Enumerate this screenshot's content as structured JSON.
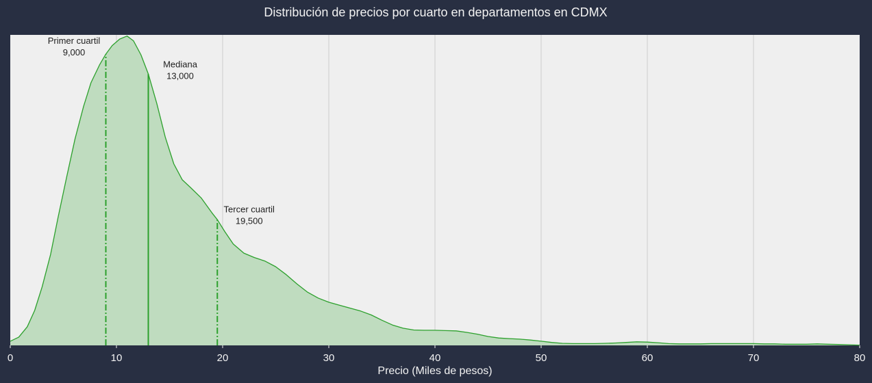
{
  "chart_data": {
    "type": "area",
    "title": "Distribución de precios por cuarto en departamentos en CDMX",
    "xlabel": "Precio (Miles de pesos)",
    "ylabel": "",
    "xlim": [
      0,
      80
    ],
    "ylim": [
      0,
      1.05
    ],
    "x_ticks": [
      "0",
      "10",
      "20",
      "30",
      "40",
      "50",
      "60",
      "70",
      "80"
    ],
    "grid": {
      "vertical": true,
      "horizontal": false
    },
    "colors": {
      "background": "#282f42",
      "plot_background": "#efefef",
      "line": "#2ca02c",
      "fill": "#bfdcbf",
      "grid": "#cccccc",
      "text": "#f2f2f2"
    },
    "series": [
      {
        "x": [
          0,
          0.8,
          1.6,
          2.3,
          3.0,
          3.8,
          4.5,
          5.3,
          6.1,
          6.9,
          7.6,
          8.4,
          9.0,
          9.6,
          10.3,
          11.0,
          11.6,
          12.3,
          13.0,
          13.8,
          14.6,
          15.4,
          16.2,
          17.0,
          18.0,
          19.0,
          19.5,
          20.2,
          21.0,
          22.0,
          23.0,
          24.0,
          25.0,
          26.0,
          27.0,
          28.0,
          29.0,
          30.0,
          31.0,
          32.0,
          33.0,
          34.0,
          35.0,
          36.0,
          37.0,
          38.0,
          39.0,
          40.0,
          41.0,
          42.0,
          43.0,
          44.0,
          45.0,
          46.0,
          47.0,
          48.0,
          49.0,
          50.0,
          51.0,
          52.0,
          53.0,
          54.0,
          55.0,
          56.0,
          57.0,
          58.0,
          59.0,
          60.0,
          61.0,
          62.0,
          63.0,
          64.0,
          65.0,
          66.0,
          67.0,
          68.0,
          69.0,
          70.0,
          71.0,
          72.0,
          73.0,
          74.0,
          75.0,
          76.0,
          77.0,
          78.0,
          79.0,
          80.0
        ],
        "y": [
          0.014,
          0.028,
          0.063,
          0.118,
          0.198,
          0.308,
          0.433,
          0.568,
          0.698,
          0.808,
          0.888,
          0.948,
          0.985,
          1.014,
          1.036,
          1.046,
          1.03,
          0.983,
          0.918,
          0.818,
          0.704,
          0.614,
          0.56,
          0.533,
          0.498,
          0.448,
          0.425,
          0.385,
          0.343,
          0.312,
          0.297,
          0.285,
          0.266,
          0.239,
          0.208,
          0.18,
          0.16,
          0.146,
          0.136,
          0.126,
          0.116,
          0.103,
          0.085,
          0.069,
          0.058,
          0.052,
          0.051,
          0.051,
          0.05,
          0.049,
          0.044,
          0.038,
          0.03,
          0.025,
          0.023,
          0.021,
          0.018,
          0.014,
          0.01,
          0.007,
          0.006,
          0.006,
          0.006,
          0.007,
          0.008,
          0.01,
          0.012,
          0.011,
          0.009,
          0.006,
          0.005,
          0.005,
          0.005,
          0.006,
          0.006,
          0.006,
          0.006,
          0.006,
          0.005,
          0.005,
          0.004,
          0.004,
          0.004,
          0.005,
          0.004,
          0.003,
          0.002,
          0.001
        ]
      }
    ],
    "annotations": [
      {
        "x": 9.0,
        "y_top": 0.985,
        "style": "dashdot",
        "label": "Primer cuartil",
        "value": "9,000",
        "label_x": 6.0,
        "label_y": 1.02
      },
      {
        "x": 13.0,
        "y_top": 0.918,
        "style": "solid",
        "label": "Mediana",
        "value": "13,000",
        "label_x": 16.0,
        "label_y": 0.94
      },
      {
        "x": 19.5,
        "y_top": 0.425,
        "style": "dashdot",
        "label": "Tercer cuartil",
        "value": "19,500",
        "label_x": 22.5,
        "label_y": 0.45
      }
    ]
  }
}
